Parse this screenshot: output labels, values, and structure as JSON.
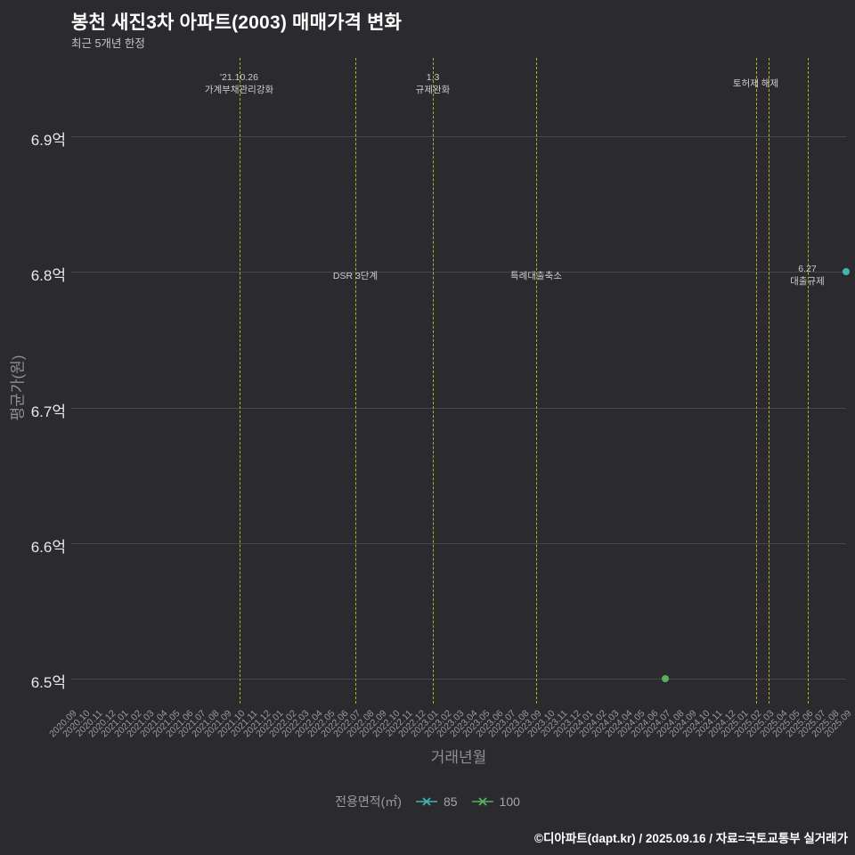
{
  "header": {
    "title": "봉천 새진3차 아파트(2003) 매매가격 변화",
    "subtitle": "최근 5개년 한정"
  },
  "footer": {
    "credit": "©디아파트(dapt.kr) / 2025.09.16 / 자료=국토교통부 실거래가"
  },
  "legend": {
    "title": "전용면적(㎡)",
    "items": [
      {
        "label": "85",
        "color": "#3eb6ad"
      },
      {
        "label": "100",
        "color": "#56b05c"
      }
    ]
  },
  "chart_data": {
    "type": "scatter",
    "title": "봉천 새진3차 아파트(2003) 매매가격 변화",
    "subtitle": "최근 5개년 한정",
    "xlabel": "거래년월",
    "ylabel": "평균가(원)",
    "ylim": [
      6.46,
      6.96
    ],
    "grid": true,
    "legend_position": "bottom",
    "y_ticks": [
      {
        "label": "6.9억",
        "value": 6.9
      },
      {
        "label": "6.8억",
        "value": 6.8
      },
      {
        "label": "6.7억",
        "value": 6.7
      },
      {
        "label": "6.6억",
        "value": 6.6
      },
      {
        "label": "6.5억",
        "value": 6.5
      }
    ],
    "categories": [
      "2020.09",
      "2020.10",
      "2020.11",
      "2020.12",
      "2021.01",
      "2021.02",
      "2021.03",
      "2021.04",
      "2021.05",
      "2021.06",
      "2021.07",
      "2021.08",
      "2021.09",
      "2021.10",
      "2021.11",
      "2021.12",
      "2022.01",
      "2022.02",
      "2022.03",
      "2022.04",
      "2022.05",
      "2022.06",
      "2022.07",
      "2022.08",
      "2022.09",
      "2022.10",
      "2022.11",
      "2022.12",
      "2023.01",
      "2023.02",
      "2023.03",
      "2023.04",
      "2023.05",
      "2023.06",
      "2023.07",
      "2023.08",
      "2023.09",
      "2023.10",
      "2023.11",
      "2023.12",
      "2024.01",
      "2024.02",
      "2024.03",
      "2024.04",
      "2024.05",
      "2024.06",
      "2024.07",
      "2024.08",
      "2024.09",
      "2024.10",
      "2024.11",
      "2024.12",
      "2025.01",
      "2025.02",
      "2025.03",
      "2025.04",
      "2025.05",
      "2025.06",
      "2025.07",
      "2025.08",
      "2025.09"
    ],
    "series": [
      {
        "name": "85",
        "color": "#3eb6ad",
        "points": [
          {
            "x": "2025.09",
            "y": 6.8
          }
        ]
      },
      {
        "name": "100",
        "color": "#56b05c",
        "points": [
          {
            "x": "2024.07",
            "y": 6.5
          }
        ]
      }
    ],
    "events": [
      {
        "x": "2021.10",
        "lines": [
          "'21.10.26",
          "가계부채관리강화"
        ],
        "position": "top"
      },
      {
        "x": "2022.07",
        "lines": [
          "DSR 3단계"
        ],
        "position": "mid"
      },
      {
        "x": "2023.01",
        "lines": [
          "1.3",
          "규제완화"
        ],
        "position": "top"
      },
      {
        "x": "2023.09",
        "lines": [
          "특례대출축소"
        ],
        "position": "mid"
      },
      {
        "x": "2025.02",
        "lines": [
          "토허제 해제"
        ],
        "position": "top"
      },
      {
        "x": "2025.03",
        "lines": [],
        "position": "top"
      },
      {
        "x": "2025.06",
        "lines": [
          "6.27",
          "대출규제"
        ],
        "position": "mid"
      }
    ]
  }
}
